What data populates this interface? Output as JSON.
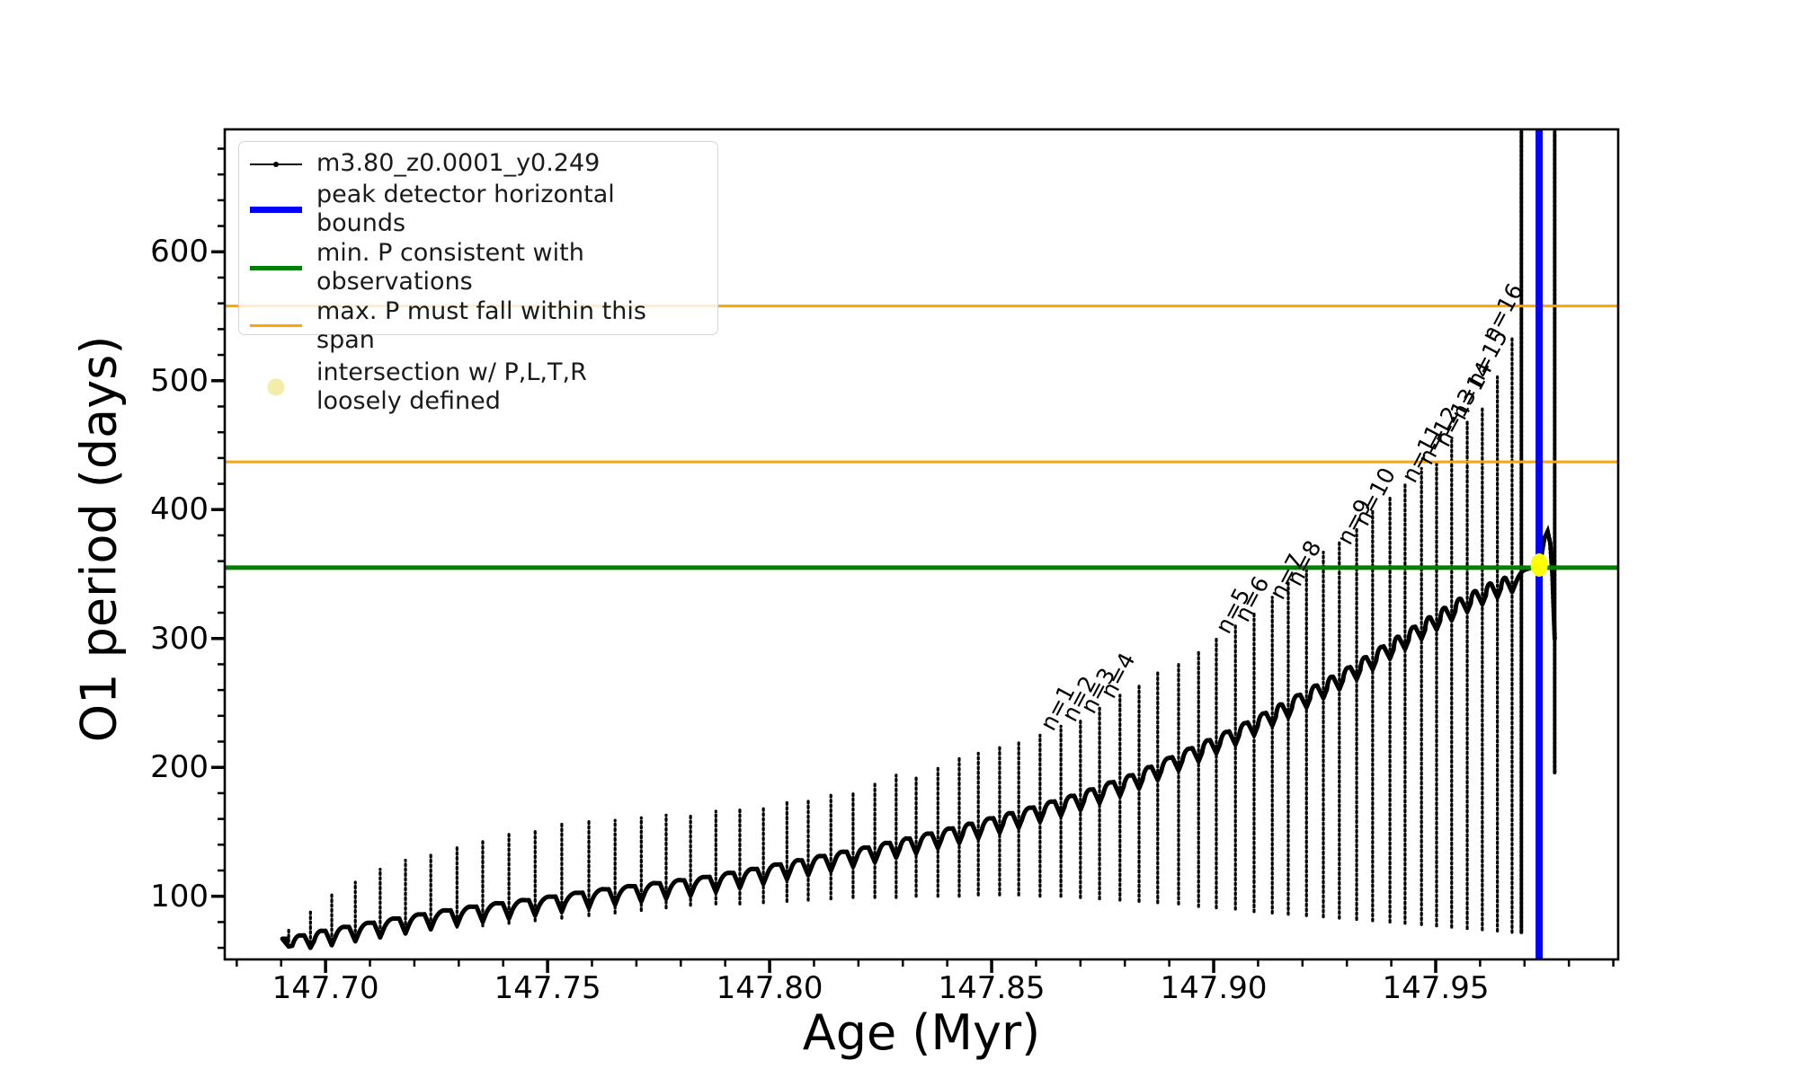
{
  "figure": {
    "background": "#ffffff",
    "xlabel": "Age (Myr)",
    "ylabel": "O1 period (days)"
  },
  "legend": {
    "entries": [
      {
        "label": "m3.80_z0.0001_y0.249",
        "sample": "line-with-marker",
        "color": "#000000",
        "thickness": 2
      },
      {
        "label": "peak detector horizontal bounds",
        "sample": "line",
        "color": "#0000ff",
        "thickness": 7
      },
      {
        "label": "min. P consistent with observations",
        "sample": "line",
        "color": "#008000",
        "thickness": 5
      },
      {
        "label": "max. P must fall within this span",
        "sample": "line",
        "color": "#ffa500",
        "thickness": 3
      },
      {
        "label": "intersection w/ P,L,T,R\nloosely defined",
        "sample": "marker",
        "color": "#f3edaa"
      }
    ]
  },
  "chart_data": {
    "type": "line",
    "title": "",
    "xlabel": "Age (Myr)",
    "ylabel": "O1 period (days)",
    "series_name": "m3.80_z0.0001_y0.249",
    "xlim": [
      147.6773,
      147.9911
    ],
    "ylim": [
      51,
      695
    ],
    "grid": false,
    "legend_position": "upper left",
    "xticks": {
      "majors": [
        {
          "v": 147.7,
          "label": "147.70"
        },
        {
          "v": 147.75,
          "label": "147.75"
        },
        {
          "v": 147.8,
          "label": "147.80"
        },
        {
          "v": 147.85,
          "label": "147.85"
        },
        {
          "v": 147.9,
          "label": "147.90"
        },
        {
          "v": 147.95,
          "label": "147.95"
        }
      ],
      "minor_start": 147.68,
      "minor_step": 0.01,
      "minor_end": 147.99
    },
    "yticks": {
      "majors": [
        {
          "v": 100,
          "label": "100"
        },
        {
          "v": 200,
          "label": "200"
        },
        {
          "v": 300,
          "label": "300"
        },
        {
          "v": 400,
          "label": "400"
        },
        {
          "v": 500,
          "label": "500"
        },
        {
          "v": 600,
          "label": "600"
        }
      ],
      "minor_start": 60,
      "minor_step": 20,
      "minor_end": 680
    },
    "baseline": [
      [
        147.6915,
        67
      ],
      [
        147.6996,
        73
      ],
      [
        147.7117,
        80
      ],
      [
        147.7239,
        87
      ],
      [
        147.736,
        93
      ],
      [
        147.7482,
        98
      ],
      [
        147.7603,
        104
      ],
      [
        147.7725,
        109
      ],
      [
        147.7846,
        114
      ],
      [
        147.7968,
        121
      ],
      [
        147.8089,
        129
      ],
      [
        147.8211,
        137
      ],
      [
        147.8332,
        146
      ],
      [
        147.8453,
        156
      ],
      [
        147.8575,
        167
      ],
      [
        147.8696,
        179
      ],
      [
        147.8818,
        194
      ],
      [
        147.8939,
        213
      ],
      [
        147.9061,
        232
      ],
      [
        147.9182,
        254
      ],
      [
        147.9304,
        277
      ],
      [
        147.9425,
        303
      ],
      [
        147.9547,
        329
      ],
      [
        147.9628,
        343
      ],
      [
        147.9692,
        351
      ],
      [
        147.9735,
        358
      ]
    ],
    "pulses": [
      [
        147.6917,
        76,
        61
      ],
      [
        147.6966,
        89,
        60
      ],
      [
        147.7014,
        101,
        62
      ],
      [
        147.7067,
        111,
        65
      ],
      [
        147.7123,
        121,
        68
      ],
      [
        147.718,
        128,
        71
      ],
      [
        147.7237,
        134,
        74
      ],
      [
        147.7296,
        139,
        76
      ],
      [
        147.7354,
        143,
        77
      ],
      [
        147.7413,
        148,
        79
      ],
      [
        147.7472,
        151,
        81
      ],
      [
        147.7532,
        156,
        83
      ],
      [
        147.7593,
        158,
        85
      ],
      [
        147.7652,
        159,
        87
      ],
      [
        147.7711,
        161,
        89
      ],
      [
        147.7767,
        163,
        91
      ],
      [
        147.7822,
        164,
        93
      ],
      [
        147.7879,
        166,
        94
      ],
      [
        147.7933,
        168,
        94
      ],
      [
        147.7986,
        170,
        95
      ],
      [
        147.8039,
        173,
        96
      ],
      [
        147.8087,
        175,
        97
      ],
      [
        147.8138,
        180,
        98
      ],
      [
        147.8188,
        180,
        99
      ],
      [
        147.8237,
        187,
        99
      ],
      [
        147.8285,
        194,
        99
      ],
      [
        147.833,
        194,
        100
      ],
      [
        147.8379,
        200,
        100
      ],
      [
        147.8427,
        207,
        100
      ],
      [
        147.847,
        211,
        101
      ],
      [
        147.8518,
        217,
        101
      ],
      [
        147.8561,
        219,
        101
      ],
      [
        147.8609,
        225,
        100
      ],
      [
        147.8656,
        232,
        100
      ],
      [
        147.87,
        238,
        99
      ],
      [
        147.8743,
        246,
        98
      ],
      [
        147.8789,
        256,
        97
      ],
      [
        147.8832,
        265,
        96
      ],
      [
        147.8874,
        274,
        95
      ],
      [
        147.8921,
        282,
        94
      ],
      [
        147.8966,
        291,
        92
      ],
      [
        147.9006,
        300,
        91
      ],
      [
        147.9049,
        310,
        90
      ],
      [
        147.9091,
        320,
        88
      ],
      [
        147.9132,
        332,
        87
      ],
      [
        147.9168,
        343,
        86
      ],
      [
        147.9209,
        355,
        85
      ],
      [
        147.9247,
        367,
        84
      ],
      [
        147.9283,
        376,
        83
      ],
      [
        147.9322,
        386,
        82
      ],
      [
        147.9358,
        400,
        81
      ],
      [
        147.9397,
        411,
        80
      ],
      [
        147.9431,
        421,
        79
      ],
      [
        147.9468,
        432,
        78
      ],
      [
        147.9502,
        437,
        77
      ],
      [
        147.9536,
        454,
        76
      ],
      [
        147.9571,
        468,
        75
      ],
      [
        147.9605,
        479,
        74
      ],
      [
        147.9639,
        503,
        73
      ],
      [
        147.9672,
        534,
        72
      ]
    ],
    "full_spikes": [
      {
        "x": 147.9693,
        "top": 693,
        "bottom": 72
      },
      {
        "x": 147.9768,
        "top": 693,
        "bottom": 196
      }
    ],
    "tail": [
      [
        147.9735,
        358
      ],
      [
        147.9745,
        378
      ],
      [
        147.9752,
        383
      ],
      [
        147.9758,
        374
      ],
      [
        147.9763,
        348
      ],
      [
        147.9766,
        318
      ],
      [
        147.9768,
        300
      ]
    ],
    "hlines": [
      {
        "y": 355,
        "color": "#008000",
        "width": 5,
        "name": "min-P-consistent"
      },
      {
        "y": 437,
        "color": "#ffa500",
        "width": 3,
        "name": "max-P-span-lower"
      },
      {
        "y": 558,
        "color": "#ffa500",
        "width": 3,
        "name": "max-P-span-upper"
      }
    ],
    "vline": {
      "x": 147.9733,
      "color": "#0000ff",
      "width": 8,
      "name": "peak-detector-bound"
    },
    "intersection": {
      "x": 147.9733,
      "y": 357,
      "color": "#ffff00"
    },
    "annotations": [
      {
        "text": "n=1",
        "x": 147.8646,
        "y": 226
      },
      {
        "text": "n=2",
        "x": 147.8694,
        "y": 233
      },
      {
        "text": "n=3",
        "x": 147.8737,
        "y": 239
      },
      {
        "text": "n=4",
        "x": 147.8781,
        "y": 251
      },
      {
        "text": "n=5",
        "x": 147.904,
        "y": 301
      },
      {
        "text": "n=6",
        "x": 147.9083,
        "y": 310
      },
      {
        "text": "n=7",
        "x": 147.9162,
        "y": 328
      },
      {
        "text": "n=8",
        "x": 147.92,
        "y": 338
      },
      {
        "text": "n=9",
        "x": 147.9314,
        "y": 370
      },
      {
        "text": "n=10",
        "x": 147.9352,
        "y": 385
      },
      {
        "text": "n=11",
        "x": 147.9459,
        "y": 418
      },
      {
        "text": "n=12",
        "x": 147.9496,
        "y": 432
      },
      {
        "text": "n=13",
        "x": 147.9534,
        "y": 446
      },
      {
        "text": "n=14",
        "x": 147.9571,
        "y": 467
      },
      {
        "text": "n=15",
        "x": 147.9605,
        "y": 492
      },
      {
        "text": "n=16",
        "x": 147.9639,
        "y": 528
      }
    ]
  }
}
